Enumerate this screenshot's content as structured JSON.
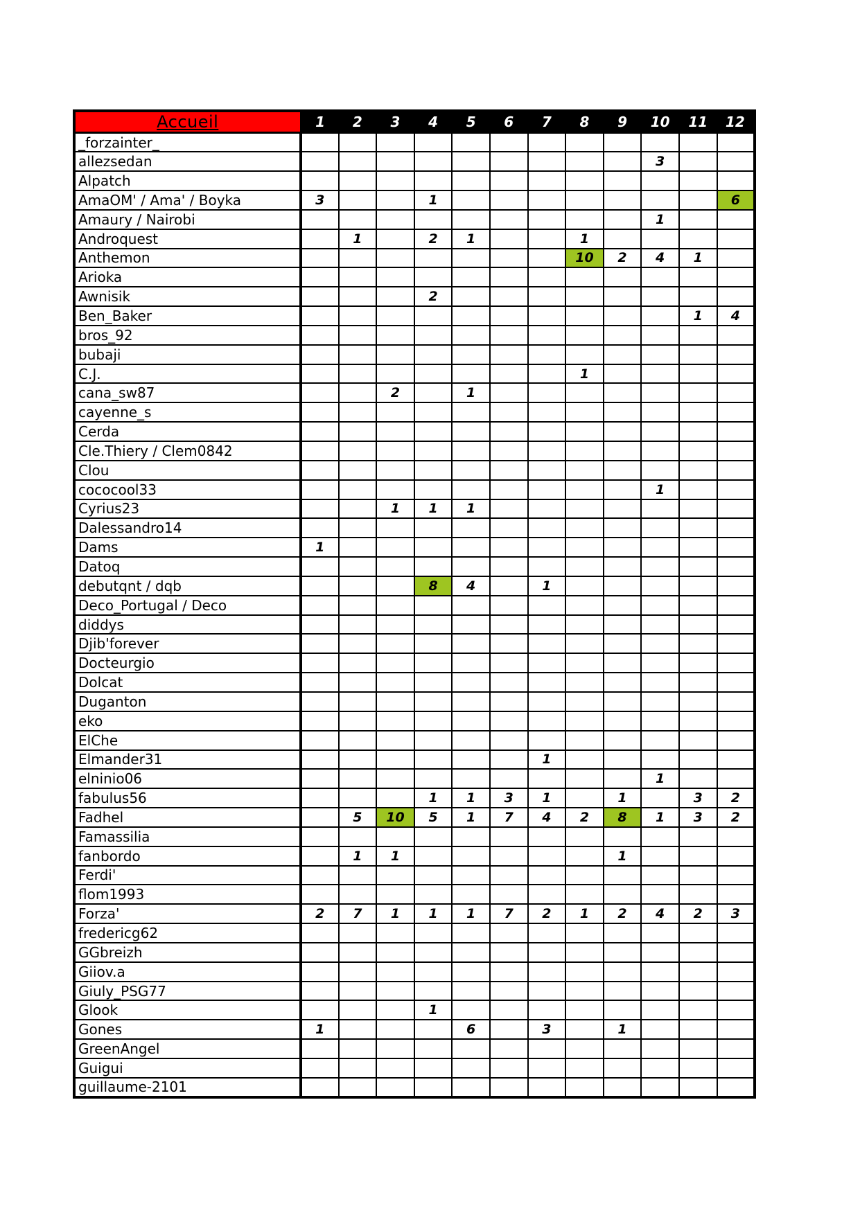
{
  "colors": {
    "accueil_red": "#ff0000",
    "header_black": "#000000",
    "highlight_green": "#9ec521",
    "grid_black": "#000000"
  },
  "table": {
    "corner_label": "Accueil",
    "round_headers": [
      "1",
      "2",
      "3",
      "4",
      "5",
      "6",
      "7",
      "8",
      "9",
      "10",
      "11",
      "12"
    ],
    "players": [
      {
        "name": "_forzainter_",
        "scores": [
          "",
          "",
          "",
          "",
          "",
          "",
          "",
          "",
          "",
          "",
          "",
          ""
        ],
        "highlights": []
      },
      {
        "name": "allezsedan",
        "scores": [
          "",
          "",
          "",
          "",
          "",
          "",
          "",
          "",
          "",
          "3",
          "",
          ""
        ],
        "highlights": []
      },
      {
        "name": "Alpatch",
        "scores": [
          "",
          "",
          "",
          "",
          "",
          "",
          "",
          "",
          "",
          "",
          "",
          ""
        ],
        "highlights": []
      },
      {
        "name": "AmaOM' / Ama' / Boyka",
        "scores": [
          "3",
          "",
          "",
          "1",
          "",
          "",
          "",
          "",
          "",
          "",
          "",
          "6"
        ],
        "highlights": [
          12
        ]
      },
      {
        "name": "Amaury / Nairobi",
        "scores": [
          "",
          "",
          "",
          "",
          "",
          "",
          "",
          "",
          "",
          "1",
          "",
          ""
        ],
        "highlights": []
      },
      {
        "name": "Androquest",
        "scores": [
          "",
          "1",
          "",
          "2",
          "1",
          "",
          "",
          "1",
          "",
          "",
          "",
          ""
        ],
        "highlights": []
      },
      {
        "name": "Anthemon",
        "scores": [
          "",
          "",
          "",
          "",
          "",
          "",
          "",
          "10",
          "2",
          "4",
          "1",
          ""
        ],
        "highlights": [
          8
        ]
      },
      {
        "name": "Arioka",
        "scores": [
          "",
          "",
          "",
          "",
          "",
          "",
          "",
          "",
          "",
          "",
          "",
          ""
        ],
        "highlights": []
      },
      {
        "name": "Awnisik",
        "scores": [
          "",
          "",
          "",
          "2",
          "",
          "",
          "",
          "",
          "",
          "",
          "",
          ""
        ],
        "highlights": []
      },
      {
        "name": "Ben_Baker",
        "scores": [
          "",
          "",
          "",
          "",
          "",
          "",
          "",
          "",
          "",
          "",
          "1",
          "4"
        ],
        "highlights": []
      },
      {
        "name": "bros_92",
        "scores": [
          "",
          "",
          "",
          "",
          "",
          "",
          "",
          "",
          "",
          "",
          "",
          ""
        ],
        "highlights": []
      },
      {
        "name": "bubaji",
        "scores": [
          "",
          "",
          "",
          "",
          "",
          "",
          "",
          "",
          "",
          "",
          "",
          ""
        ],
        "highlights": []
      },
      {
        "name": "C.J.",
        "scores": [
          "",
          "",
          "",
          "",
          "",
          "",
          "",
          "1",
          "",
          "",
          "",
          ""
        ],
        "highlights": []
      },
      {
        "name": "cana_sw87",
        "scores": [
          "",
          "",
          "2",
          "",
          "1",
          "",
          "",
          "",
          "",
          "",
          "",
          ""
        ],
        "highlights": []
      },
      {
        "name": "cayenne_s",
        "scores": [
          "",
          "",
          "",
          "",
          "",
          "",
          "",
          "",
          "",
          "",
          "",
          ""
        ],
        "highlights": []
      },
      {
        "name": "Cerda",
        "scores": [
          "",
          "",
          "",
          "",
          "",
          "",
          "",
          "",
          "",
          "",
          "",
          ""
        ],
        "highlights": []
      },
      {
        "name": "Cle.Thiery / Clem0842",
        "scores": [
          "",
          "",
          "",
          "",
          "",
          "",
          "",
          "",
          "",
          "",
          "",
          ""
        ],
        "highlights": []
      },
      {
        "name": "Clou",
        "scores": [
          "",
          "",
          "",
          "",
          "",
          "",
          "",
          "",
          "",
          "",
          "",
          ""
        ],
        "highlights": []
      },
      {
        "name": "cococool33",
        "scores": [
          "",
          "",
          "",
          "",
          "",
          "",
          "",
          "",
          "",
          "1",
          "",
          ""
        ],
        "highlights": []
      },
      {
        "name": "Cyrius23",
        "scores": [
          "",
          "",
          "1",
          "1",
          "1",
          "",
          "",
          "",
          "",
          "",
          "",
          ""
        ],
        "highlights": []
      },
      {
        "name": "Dalessandro14",
        "scores": [
          "",
          "",
          "",
          "",
          "",
          "",
          "",
          "",
          "",
          "",
          "",
          ""
        ],
        "highlights": []
      },
      {
        "name": "Dams",
        "scores": [
          "1",
          "",
          "",
          "",
          "",
          "",
          "",
          "",
          "",
          "",
          "",
          ""
        ],
        "highlights": []
      },
      {
        "name": "Datoq",
        "scores": [
          "",
          "",
          "",
          "",
          "",
          "",
          "",
          "",
          "",
          "",
          "",
          ""
        ],
        "highlights": []
      },
      {
        "name": "debutqnt / dqb",
        "scores": [
          "",
          "",
          "",
          "8",
          "4",
          "",
          "1",
          "",
          "",
          "",
          "",
          ""
        ],
        "highlights": [
          4
        ]
      },
      {
        "name": "Deco_Portugal / Deco",
        "scores": [
          "",
          "",
          "",
          "",
          "",
          "",
          "",
          "",
          "",
          "",
          "",
          ""
        ],
        "highlights": []
      },
      {
        "name": "diddys",
        "scores": [
          "",
          "",
          "",
          "",
          "",
          "",
          "",
          "",
          "",
          "",
          "",
          ""
        ],
        "highlights": []
      },
      {
        "name": "Djib'forever",
        "scores": [
          "",
          "",
          "",
          "",
          "",
          "",
          "",
          "",
          "",
          "",
          "",
          ""
        ],
        "highlights": []
      },
      {
        "name": "Docteurgio",
        "scores": [
          "",
          "",
          "",
          "",
          "",
          "",
          "",
          "",
          "",
          "",
          "",
          ""
        ],
        "highlights": []
      },
      {
        "name": "Dolcat",
        "scores": [
          "",
          "",
          "",
          "",
          "",
          "",
          "",
          "",
          "",
          "",
          "",
          ""
        ],
        "highlights": []
      },
      {
        "name": "Duganton",
        "scores": [
          "",
          "",
          "",
          "",
          "",
          "",
          "",
          "",
          "",
          "",
          "",
          ""
        ],
        "highlights": []
      },
      {
        "name": "eko",
        "scores": [
          "",
          "",
          "",
          "",
          "",
          "",
          "",
          "",
          "",
          "",
          "",
          ""
        ],
        "highlights": []
      },
      {
        "name": "ElChe",
        "scores": [
          "",
          "",
          "",
          "",
          "",
          "",
          "",
          "",
          "",
          "",
          "",
          ""
        ],
        "highlights": []
      },
      {
        "name": "Elmander31",
        "scores": [
          "",
          "",
          "",
          "",
          "",
          "",
          "1",
          "",
          "",
          "",
          "",
          ""
        ],
        "highlights": []
      },
      {
        "name": "elninio06",
        "scores": [
          "",
          "",
          "",
          "",
          "",
          "",
          "",
          "",
          "",
          "1",
          "",
          ""
        ],
        "highlights": []
      },
      {
        "name": "fabulus56",
        "scores": [
          "",
          "",
          "",
          "1",
          "1",
          "3",
          "1",
          "",
          "1",
          "",
          "3",
          "2"
        ],
        "highlights": []
      },
      {
        "name": "Fadhel",
        "scores": [
          "",
          "5",
          "10",
          "5",
          "1",
          "7",
          "4",
          "2",
          "8",
          "1",
          "3",
          "2"
        ],
        "highlights": [
          3,
          9
        ]
      },
      {
        "name": "Famassilia",
        "scores": [
          "",
          "",
          "",
          "",
          "",
          "",
          "",
          "",
          "",
          "",
          "",
          ""
        ],
        "highlights": []
      },
      {
        "name": "fanbordo",
        "scores": [
          "",
          "1",
          "1",
          "",
          "",
          "",
          "",
          "",
          "1",
          "",
          "",
          ""
        ],
        "highlights": []
      },
      {
        "name": "Ferdi'",
        "scores": [
          "",
          "",
          "",
          "",
          "",
          "",
          "",
          "",
          "",
          "",
          "",
          ""
        ],
        "highlights": []
      },
      {
        "name": "flom1993",
        "scores": [
          "",
          "",
          "",
          "",
          "",
          "",
          "",
          "",
          "",
          "",
          "",
          ""
        ],
        "highlights": []
      },
      {
        "name": "Forza'",
        "scores": [
          "2",
          "7",
          "1",
          "1",
          "1",
          "7",
          "2",
          "1",
          "2",
          "4",
          "2",
          "3"
        ],
        "highlights": []
      },
      {
        "name": "fredericg62",
        "scores": [
          "",
          "",
          "",
          "",
          "",
          "",
          "",
          "",
          "",
          "",
          "",
          ""
        ],
        "highlights": []
      },
      {
        "name": "GGbreizh",
        "scores": [
          "",
          "",
          "",
          "",
          "",
          "",
          "",
          "",
          "",
          "",
          "",
          ""
        ],
        "highlights": []
      },
      {
        "name": "Giiov.a",
        "scores": [
          "",
          "",
          "",
          "",
          "",
          "",
          "",
          "",
          "",
          "",
          "",
          ""
        ],
        "highlights": []
      },
      {
        "name": "Giuly_PSG77",
        "scores": [
          "",
          "",
          "",
          "",
          "",
          "",
          "",
          "",
          "",
          "",
          "",
          ""
        ],
        "highlights": []
      },
      {
        "name": "Glook",
        "scores": [
          "",
          "",
          "",
          "1",
          "",
          "",
          "",
          "",
          "",
          "",
          "",
          ""
        ],
        "highlights": []
      },
      {
        "name": "Gones",
        "scores": [
          "1",
          "",
          "",
          "",
          "6",
          "",
          "3",
          "",
          "1",
          "",
          "",
          ""
        ],
        "highlights": []
      },
      {
        "name": "GreenAngel",
        "scores": [
          "",
          "",
          "",
          "",
          "",
          "",
          "",
          "",
          "",
          "",
          "",
          ""
        ],
        "highlights": []
      },
      {
        "name": "Guigui",
        "scores": [
          "",
          "",
          "",
          "",
          "",
          "",
          "",
          "",
          "",
          "",
          "",
          ""
        ],
        "highlights": []
      },
      {
        "name": "guillaume-2101",
        "scores": [
          "",
          "",
          "",
          "",
          "",
          "",
          "",
          "",
          "",
          "",
          "",
          ""
        ],
        "highlights": []
      }
    ]
  }
}
